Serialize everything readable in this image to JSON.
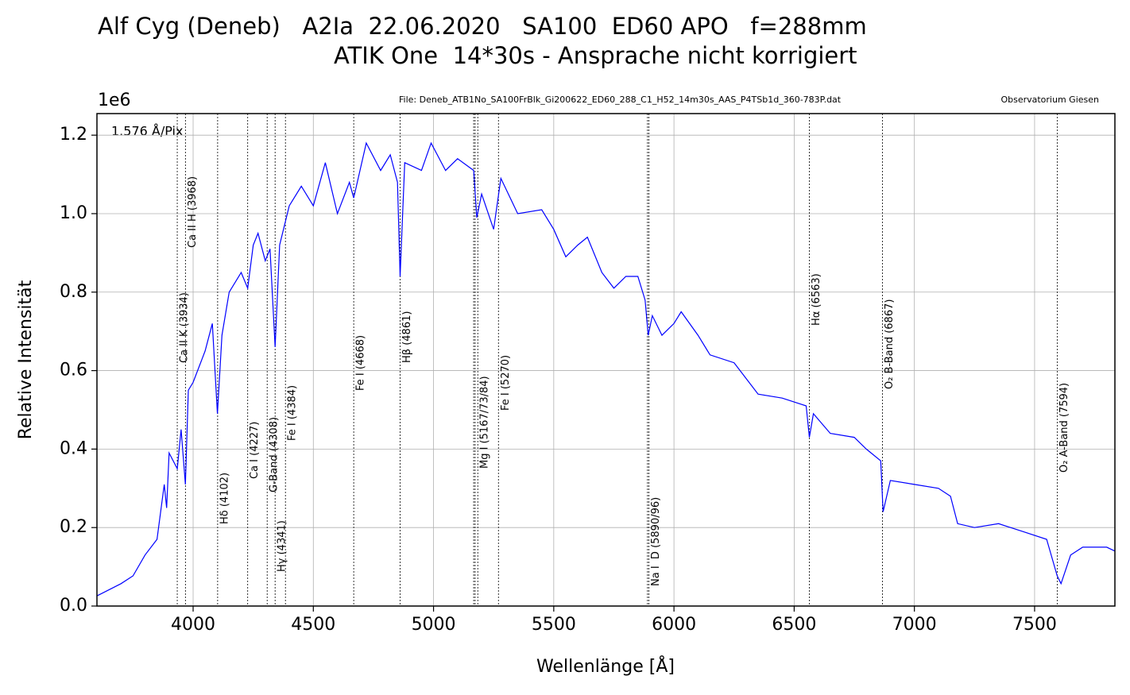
{
  "chart_data": {
    "type": "line",
    "title": [
      "Alf Cyg (Deneb)   A2Ia  22.06.2020   SA100  ED60 APO   f=288mm",
      "ATIK One  14*30s - Ansprache nicht korrigiert"
    ],
    "file_note": "File: Deneb_ATB1No_SA100FrBlk_Gi200622_ED60_288_C1_H52_14m30s_AAS_P4TSb1d_360-783P.dat",
    "observatory": "Observatorium Giesen",
    "dispersion_note": "1.576 Å/Pix",
    "y_offset_label": "1e6",
    "xlabel": "Wellenlänge [Å]",
    "ylabel": "Relative Intensität",
    "color": "#0000ff",
    "grid": true,
    "xlim": [
      3600,
      7834
    ],
    "ylim": [
      0,
      1.255
    ],
    "xticks": [
      4000,
      4500,
      5000,
      5500,
      6000,
      6500,
      7000,
      7500
    ],
    "yticks": [
      {
        "value": 0,
        "label": "0.0"
      },
      0.2,
      0.4,
      0.6,
      0.8,
      {
        "value": 1,
        "label": "1.0"
      },
      1.2
    ],
    "x": [
      3600,
      3700,
      3750,
      3800,
      3850,
      3880,
      3890,
      3900,
      3934,
      3950,
      3968,
      3980,
      4000,
      4050,
      4080,
      4101,
      4120,
      4150,
      4200,
      4227,
      4250,
      4270,
      4300,
      4320,
      4341,
      4360,
      4400,
      4450,
      4500,
      4550,
      4600,
      4650,
      4668,
      4720,
      4780,
      4820,
      4850,
      4861,
      4880,
      4950,
      4990,
      5050,
      5100,
      5167,
      5180,
      5200,
      5250,
      5280,
      5350,
      5450,
      5500,
      5550,
      5600,
      5640,
      5700,
      5750,
      5800,
      5850,
      5880,
      5893,
      5910,
      5950,
      6000,
      6030,
      6100,
      6150,
      6250,
      6300,
      6350,
      6450,
      6550,
      6563,
      6580,
      6650,
      6750,
      6800,
      6860,
      6870,
      6900,
      7000,
      7100,
      7150,
      7180,
      7250,
      7350,
      7450,
      7550,
      7594,
      7610,
      7650,
      7700,
      7800,
      7834
    ],
    "values": [
      0.026,
      0.057,
      0.077,
      0.13,
      0.17,
      0.31,
      0.25,
      0.39,
      0.35,
      0.45,
      0.31,
      0.55,
      0.57,
      0.65,
      0.72,
      0.49,
      0.69,
      0.8,
      0.85,
      0.81,
      0.92,
      0.95,
      0.88,
      0.91,
      0.66,
      0.92,
      1.02,
      1.07,
      1.02,
      1.13,
      1.0,
      1.08,
      1.04,
      1.18,
      1.11,
      1.15,
      1.08,
      0.84,
      1.13,
      1.11,
      1.18,
      1.11,
      1.14,
      1.11,
      0.99,
      1.05,
      0.96,
      1.09,
      1.0,
      1.01,
      0.96,
      0.89,
      0.92,
      0.94,
      0.85,
      0.81,
      0.84,
      0.84,
      0.78,
      0.69,
      0.74,
      0.69,
      0.72,
      0.75,
      0.69,
      0.64,
      0.62,
      0.58,
      0.54,
      0.53,
      0.51,
      0.43,
      0.49,
      0.44,
      0.43,
      0.4,
      0.37,
      0.24,
      0.32,
      0.31,
      0.3,
      0.28,
      0.21,
      0.2,
      0.21,
      0.19,
      0.17,
      0.077,
      0.057,
      0.13,
      0.15,
      0.15,
      0.14
    ],
    "annotations": [
      {
        "text": "Ca II K (3934)",
        "x": [
          3934
        ]
      },
      {
        "text": "Ca II H (3968)",
        "x": [
          3968
        ]
      },
      {
        "text": "Hδ (4102)",
        "x": [
          4102
        ]
      },
      {
        "text": "Ca I (4227)",
        "x": [
          4227
        ]
      },
      {
        "text": "G-Band (4308)",
        "x": [
          4308
        ]
      },
      {
        "text": "Hγ (4341)",
        "x": [
          4341
        ]
      },
      {
        "text": "Fe I (4384)",
        "x": [
          4384
        ]
      },
      {
        "text": "Fe I (4668)",
        "x": [
          4668
        ]
      },
      {
        "text": "Hβ (4861)",
        "x": [
          4861
        ]
      },
      {
        "text": "Mg I (5167/73/84)",
        "x": [
          5167,
          5173,
          5184
        ]
      },
      {
        "text": "Fe I (5270)",
        "x": [
          5270
        ]
      },
      {
        "text": "Na I  D (5890/96)",
        "x": [
          5890,
          5896
        ]
      },
      {
        "text": "Hα (6563)",
        "x": [
          6563
        ]
      },
      {
        "text": "O₂ B-Band (6867)",
        "x": [
          6867
        ]
      },
      {
        "text": "O₂ A-Band (7594)",
        "x": [
          7594
        ]
      }
    ]
  }
}
